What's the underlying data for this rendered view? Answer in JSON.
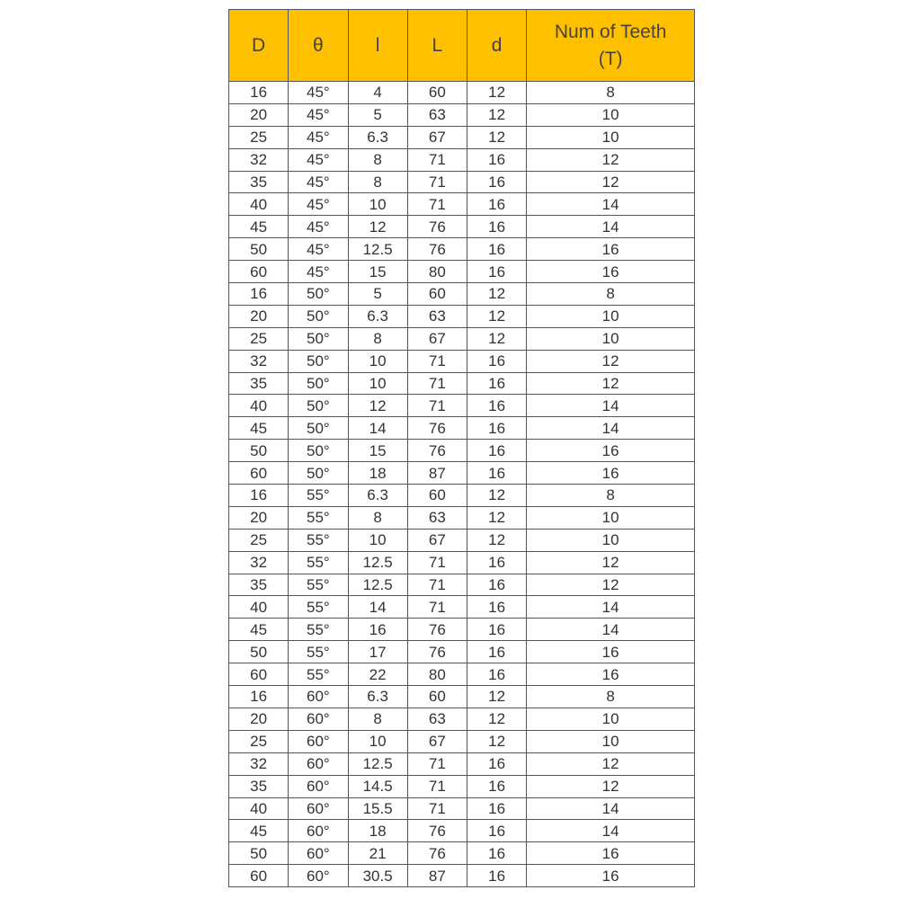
{
  "colors": {
    "header_bg": "#FFC000"
  },
  "table": {
    "headers": [
      "D",
      "θ",
      "l",
      "L",
      "d",
      "Num of Teeth\n(T)"
    ],
    "rows": [
      [
        "16",
        "45°",
        "4",
        "60",
        "12",
        "8"
      ],
      [
        "20",
        "45°",
        "5",
        "63",
        "12",
        "10"
      ],
      [
        "25",
        "45°",
        "6.3",
        "67",
        "12",
        "10"
      ],
      [
        "32",
        "45°",
        "8",
        "71",
        "16",
        "12"
      ],
      [
        "35",
        "45°",
        "8",
        "71",
        "16",
        "12"
      ],
      [
        "40",
        "45°",
        "10",
        "71",
        "16",
        "14"
      ],
      [
        "45",
        "45°",
        "12",
        "76",
        "16",
        "14"
      ],
      [
        "50",
        "45°",
        "12.5",
        "76",
        "16",
        "16"
      ],
      [
        "60",
        "45°",
        "15",
        "80",
        "16",
        "16"
      ],
      [
        "16",
        "50°",
        "5",
        "60",
        "12",
        "8"
      ],
      [
        "20",
        "50°",
        "6.3",
        "63",
        "12",
        "10"
      ],
      [
        "25",
        "50°",
        "8",
        "67",
        "12",
        "10"
      ],
      [
        "32",
        "50°",
        "10",
        "71",
        "16",
        "12"
      ],
      [
        "35",
        "50°",
        "10",
        "71",
        "16",
        "12"
      ],
      [
        "40",
        "50°",
        "12",
        "71",
        "16",
        "14"
      ],
      [
        "45",
        "50°",
        "14",
        "76",
        "16",
        "14"
      ],
      [
        "50",
        "50°",
        "15",
        "76",
        "16",
        "16"
      ],
      [
        "60",
        "50°",
        "18",
        "87",
        "16",
        "16"
      ],
      [
        "16",
        "55°",
        "6.3",
        "60",
        "12",
        "8"
      ],
      [
        "20",
        "55°",
        "8",
        "63",
        "12",
        "10"
      ],
      [
        "25",
        "55°",
        "10",
        "67",
        "12",
        "10"
      ],
      [
        "32",
        "55°",
        "12.5",
        "71",
        "16",
        "12"
      ],
      [
        "35",
        "55°",
        "12.5",
        "71",
        "16",
        "12"
      ],
      [
        "40",
        "55°",
        "14",
        "71",
        "16",
        "14"
      ],
      [
        "45",
        "55°",
        "16",
        "76",
        "16",
        "14"
      ],
      [
        "50",
        "55°",
        "17",
        "76",
        "16",
        "16"
      ],
      [
        "60",
        "55°",
        "22",
        "80",
        "16",
        "16"
      ],
      [
        "16",
        "60°",
        "6.3",
        "60",
        "12",
        "8"
      ],
      [
        "20",
        "60°",
        "8",
        "63",
        "12",
        "10"
      ],
      [
        "25",
        "60°",
        "10",
        "67",
        "12",
        "10"
      ],
      [
        "32",
        "60°",
        "12.5",
        "71",
        "16",
        "12"
      ],
      [
        "35",
        "60°",
        "14.5",
        "71",
        "16",
        "12"
      ],
      [
        "40",
        "60°",
        "15.5",
        "71",
        "16",
        "14"
      ],
      [
        "45",
        "60°",
        "18",
        "76",
        "16",
        "14"
      ],
      [
        "50",
        "60°",
        "21",
        "76",
        "16",
        "16"
      ],
      [
        "60",
        "60°",
        "30.5",
        "87",
        "16",
        "16"
      ]
    ]
  }
}
